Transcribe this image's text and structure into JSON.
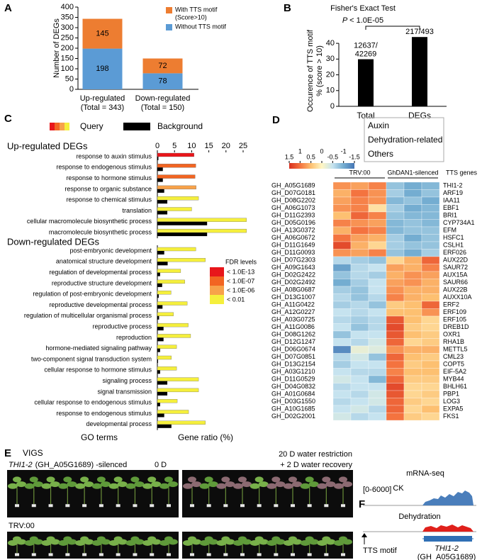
{
  "chart_data": [
    {
      "panel": "A",
      "type": "stacked_bar",
      "ylabel": "Number of DEGs",
      "categories": [
        "Up-regulated",
        "Down-regulated"
      ],
      "category_notes": [
        "(Total = 343)",
        "(Total = 150)"
      ],
      "series": [
        {
          "name": "Without TTS motif",
          "color": "#5b9bd5",
          "values": [
            198,
            78
          ]
        },
        {
          "name": "With TTS motif",
          "name_note": "(Score>10)",
          "color": "#ed7d31",
          "values": [
            145,
            72
          ]
        }
      ],
      "ylim": [
        0,
        400
      ],
      "yticks": [
        0,
        50,
        100,
        150,
        200,
        250,
        300,
        350,
        400
      ]
    },
    {
      "panel": "B",
      "type": "bar",
      "title": "Fisher's Exact Test",
      "annotation": {
        "italic": "P",
        "text": "< 1.0E-05"
      },
      "ylabel": [
        "Occurence of TTS motif",
        "% (score > 10)"
      ],
      "categories": [
        "Total",
        "DEGs"
      ],
      "values": [
        29.9,
        44.0
      ],
      "color": "#000000",
      "bar_notes": [
        [
          "12637/",
          "42269"
        ],
        [
          "217/493"
        ]
      ],
      "ylim": [
        0,
        45
      ],
      "yticks": [
        0,
        10,
        20,
        30,
        40
      ]
    },
    {
      "panel": "C",
      "type": "paired_hbar",
      "legend": [
        {
          "name": "Query",
          "colors": [
            "#e8161b",
            "#f26522",
            "#f7a24a",
            "#f5ef3c"
          ]
        },
        {
          "name": "Background",
          "color": "#000000"
        }
      ],
      "xlim": [
        0,
        27
      ],
      "xticks": [
        0,
        5,
        10,
        15,
        20,
        25
      ],
      "xlabel": "Gene ratio (%)",
      "ylabel": "GO terms",
      "fdr_legend": {
        "title": "FDR levels",
        "levels": [
          {
            "label": "< 1.0E-13",
            "color": "#e8161b"
          },
          {
            "label": "< 1.0E-07",
            "color": "#f26522"
          },
          {
            "label": "< 1.0E-06",
            "color": "#f7a24a"
          },
          {
            "label": "< 0.01",
            "color": "#f5ef3c"
          }
        ]
      },
      "groups": [
        {
          "title": "Up-regulated DEGs",
          "categories": [
            "response to auxin stimulus",
            "response to endogenous stimulus",
            "response to hormone stimulus",
            "response to organic substance",
            "response to chemical stimulus",
            "translation",
            "cellular macromolecule biosynthetic process",
            "macromolecule biosynthetic process"
          ],
          "query": [
            10.7,
            11.2,
            11.0,
            11.3,
            12.0,
            10.0,
            26.0,
            26.0
          ],
          "query_colors": [
            "#e8161b",
            "#f26522",
            "#f26522",
            "#f7a24a",
            "#f5ef3c",
            "#f5ef3c",
            "#f5ef3c",
            "#f5ef3c"
          ],
          "background": [
            0.3,
            1.6,
            1.6,
            2.0,
            2.9,
            2.9,
            14.5,
            14.5
          ]
        },
        {
          "title": "Down-regulated DEGs",
          "categories": [
            "post-embryonic development",
            "anatomical structure development",
            "regulation of developmental process",
            "reproductive structure development",
            "regulation of post-embryonic development",
            "reproductive developmental process",
            "regulation of multicellular organismal process",
            "reproductive process",
            "reproduction",
            "hormone-mediated signaling pathway",
            "two-component signal transduction system",
            "cellular response to hormone stimulus",
            "signaling process",
            "signal transmission",
            "cellular response to endogenous stimulus",
            "response to endogenous stimulus",
            "developmental process"
          ],
          "query": [
            11.2,
            14.0,
            6.8,
            8.0,
            4.0,
            8.7,
            4.7,
            9.0,
            9.7,
            5.6,
            4.1,
            5.6,
            12.0,
            12.0,
            5.8,
            9.1,
            14.0
          ],
          "query_colors": [
            "#f5ef3c",
            "#f5ef3c",
            "#f5ef3c",
            "#f5ef3c",
            "#f5ef3c",
            "#f5ef3c",
            "#f5ef3c",
            "#f5ef3c",
            "#f5ef3c",
            "#f5ef3c",
            "#f5ef3c",
            "#f5ef3c",
            "#f5ef3c",
            "#f5ef3c",
            "#f5ef3c",
            "#f5ef3c",
            "#f5ef3c"
          ],
          "background": [
            2.0,
            3.0,
            0.8,
            1.4,
            0.4,
            1.5,
            0.5,
            1.8,
            1.8,
            0.8,
            0.2,
            0.8,
            2.9,
            2.9,
            0.8,
            2.0,
            4.1
          ]
        }
      ]
    },
    {
      "panel": "D",
      "type": "heatmap",
      "zlim": [
        -1.5,
        1.5
      ],
      "colorbar_ticks": [
        1.5,
        1,
        0.5,
        0,
        -0.5,
        -1,
        -1.5
      ],
      "colormap": [
        "#4575b4",
        "#74add1",
        "#c6e3ef",
        "#fff6c4",
        "#fdc071",
        "#f4733f",
        "#d7301f"
      ],
      "column_groups": [
        "TRV:00",
        "GhDAN1-silenced"
      ],
      "gene_header": "TTS genes",
      "category_legend": [
        {
          "name": "Auxin",
          "color": "#4a7ebb"
        },
        {
          "name": "Dehydration-related",
          "color": "#e0201b"
        },
        {
          "name": "Others",
          "color": "#000000"
        }
      ],
      "rows": [
        {
          "id": "GH_A05G1689",
          "gene": "THI1-2",
          "color": "#e0201b",
          "values": [
            0.8,
            0.7,
            0.9,
            -0.8,
            -1.0,
            -0.9
          ]
        },
        {
          "id": "GH_D07G0181",
          "gene": "ARF19",
          "color": "#4a7ebb",
          "values": [
            0.6,
            1.0,
            0.8,
            -0.7,
            -1.0,
            -0.8
          ]
        },
        {
          "id": "GH_D08G2202",
          "gene": "IAA11",
          "color": "#4a7ebb",
          "values": [
            0.7,
            0.9,
            0.8,
            -0.9,
            -0.8,
            -1.0
          ]
        },
        {
          "id": "GH_A06G1073",
          "gene": "EBF1",
          "color": "#000000",
          "values": [
            0.8,
            0.9,
            0.2,
            -0.7,
            -1.0,
            -0.9
          ]
        },
        {
          "id": "GH_D11G2393",
          "gene": "BRI1",
          "color": "#000000",
          "values": [
            0.5,
            1.1,
            0.9,
            -0.8,
            -0.9,
            -0.9
          ]
        },
        {
          "id": "GH_D05G0196",
          "gene": "CYP734A1",
          "color": "#000000",
          "values": [
            0.9,
            0.8,
            0.7,
            -0.9,
            -0.8,
            -0.9
          ]
        },
        {
          "id": "GH_A13G0372",
          "gene": "EFM",
          "color": "#000000",
          "values": [
            0.6,
            1.0,
            0.9,
            -0.9,
            -0.8,
            -0.8
          ]
        },
        {
          "id": "GH_A06G0672",
          "gene": "HSFC1",
          "color": "#000000",
          "values": [
            1.0,
            0.7,
            0.6,
            -0.7,
            -1.0,
            -0.8
          ]
        },
        {
          "id": "GH_D11G1649",
          "gene": "CSLH1",
          "color": "#000000",
          "values": [
            1.3,
            0.6,
            0.3,
            -0.7,
            -0.8,
            -0.8
          ]
        },
        {
          "id": "GH_D11G0093",
          "gene": "ERF026",
          "color": "#000000",
          "values": [
            0.8,
            0.7,
            0.9,
            -0.8,
            -1.0,
            -0.7
          ]
        },
        {
          "id": "GH_D07G2303",
          "gene": "AUX22D",
          "color": "#4a7ebb",
          "values": [
            -0.6,
            -0.7,
            -0.8,
            0.3,
            0.6,
            1.1
          ]
        },
        {
          "id": "GH_A09G1643",
          "gene": "SAUR72",
          "color": "#4a7ebb",
          "values": [
            -1.1,
            -0.6,
            -0.5,
            0.7,
            0.6,
            0.9
          ]
        },
        {
          "id": "GH_D02G2422",
          "gene": "AUX15A",
          "color": "#4a7ebb",
          "values": [
            -0.8,
            -0.6,
            -0.7,
            0.6,
            0.8,
            0.7
          ]
        },
        {
          "id": "GH_D02G2492",
          "gene": "SAUR66",
          "color": "#4a7ebb",
          "values": [
            -1.0,
            -0.7,
            -0.5,
            0.7,
            0.8,
            0.6
          ]
        },
        {
          "id": "GH_A08G0687",
          "gene": "AUX22B",
          "color": "#4a7ebb",
          "values": [
            -0.7,
            -0.8,
            -0.5,
            0.8,
            0.6,
            0.6
          ]
        },
        {
          "id": "GH_D13G1007",
          "gene": "AUXX10A",
          "color": "#4a7ebb",
          "values": [
            -0.6,
            -0.8,
            -0.6,
            0.9,
            0.6,
            0.5
          ]
        },
        {
          "id": "GH_A11G0422",
          "gene": "ERF2",
          "color": "#000000",
          "values": [
            -0.7,
            -0.6,
            -0.8,
            0.4,
            0.5,
            1.1
          ]
        },
        {
          "id": "GH_A12G0227",
          "gene": "ERF109",
          "color": "#000000",
          "values": [
            -0.5,
            -0.6,
            -0.5,
            0.5,
            0.5,
            0.8
          ]
        },
        {
          "id": "GH_A03G0725",
          "gene": "ERF105",
          "color": "#000000",
          "values": [
            -0.6,
            -0.7,
            -0.6,
            1.2,
            0.5,
            0.3
          ]
        },
        {
          "id": "GH_A11G0086",
          "gene": "DREB1D",
          "color": "#e0201b",
          "values": [
            -0.5,
            -0.8,
            -0.6,
            1.3,
            0.4,
            0.3
          ]
        },
        {
          "id": "GH_D08G1262",
          "gene": "OXR1",
          "color": "#e0201b",
          "values": [
            -0.8,
            -0.5,
            -0.5,
            1.2,
            0.5,
            0.4
          ]
        },
        {
          "id": "GH_D12G1247",
          "gene": "RHA1B",
          "color": "#000000",
          "values": [
            -0.5,
            -0.6,
            -0.4,
            1.1,
            0.3,
            0.4
          ]
        },
        {
          "id": "GH_D06G0674",
          "gene": "METTL5",
          "color": "#000000",
          "values": [
            -1.3,
            -0.2,
            -0.3,
            0.8,
            0.6,
            0.6
          ]
        },
        {
          "id": "GH_D07G0851",
          "gene": "CML23",
          "color": "#000000",
          "values": [
            -0.6,
            -0.4,
            -0.8,
            1.1,
            0.5,
            0.4
          ]
        },
        {
          "id": "GH_D13G2154",
          "gene": "COPT5",
          "color": "#000000",
          "values": [
            -0.7,
            -0.5,
            -0.5,
            1.0,
            0.4,
            0.5
          ]
        },
        {
          "id": "GH_A03G1210",
          "gene": "EIF-5A2",
          "color": "#000000",
          "values": [
            -0.5,
            -0.6,
            -0.6,
            0.9,
            0.5,
            0.5
          ]
        },
        {
          "id": "GH_D11G0529",
          "gene": "MYB44",
          "color": "#000000",
          "values": [
            -0.4,
            -0.5,
            -0.9,
            1.1,
            0.4,
            0.4
          ]
        },
        {
          "id": "GH_D04G0832",
          "gene": "BHLH61",
          "color": "#000000",
          "values": [
            -0.6,
            -0.5,
            -0.5,
            1.3,
            0.3,
            0.3
          ]
        },
        {
          "id": "GH_A01G0684",
          "gene": "PBP1",
          "color": "#000000",
          "values": [
            -0.5,
            -0.6,
            -0.4,
            1.2,
            0.3,
            0.4
          ]
        },
        {
          "id": "GH_D03G1550",
          "gene": "LOG3",
          "color": "#000000",
          "values": [
            -0.6,
            -0.5,
            -0.4,
            1.1,
            0.4,
            0.3
          ]
        },
        {
          "id": "GH_A10G1685",
          "gene": "EXPA5",
          "color": "#000000",
          "values": [
            -0.5,
            -0.4,
            -0.6,
            1.1,
            0.3,
            0.5
          ]
        },
        {
          "id": "GH_D02G2001",
          "gene": "FKS1",
          "color": "#000000",
          "values": [
            -0.4,
            -0.6,
            -0.5,
            1.0,
            0.4,
            0.3
          ]
        }
      ]
    }
  ],
  "panel_e": {
    "label": "E",
    "title": "VIGS",
    "rows": [
      {
        "title": "THI1-2",
        "title_rest": "(GH_A05G1689) -silenced",
        "left_note": "0 D"
      },
      {
        "title": "TRV:00"
      }
    ],
    "right_note": [
      "20 D water restriction",
      "+ 2 D water recovery"
    ]
  },
  "panel_f": {
    "label": "F",
    "title": "mRNA-seq",
    "range": "[0-6000]",
    "tracks": [
      "CK",
      "Dehydration"
    ],
    "motif": "TTS motif",
    "gene": "THI1-2",
    "gene_id": "(GH_A05G1689)"
  }
}
